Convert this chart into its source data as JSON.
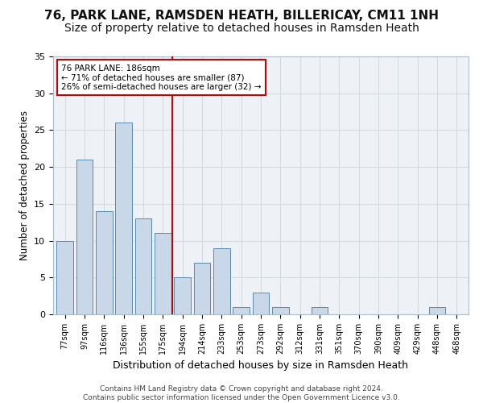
{
  "title1": "76, PARK LANE, RAMSDEN HEATH, BILLERICAY, CM11 1NH",
  "title2": "Size of property relative to detached houses in Ramsden Heath",
  "xlabel": "Distribution of detached houses by size in Ramsden Heath",
  "ylabel": "Number of detached properties",
  "categories": [
    "77sqm",
    "97sqm",
    "116sqm",
    "136sqm",
    "155sqm",
    "175sqm",
    "194sqm",
    "214sqm",
    "233sqm",
    "253sqm",
    "273sqm",
    "292sqm",
    "312sqm",
    "331sqm",
    "351sqm",
    "370sqm",
    "390sqm",
    "409sqm",
    "429sqm",
    "448sqm",
    "468sqm"
  ],
  "values": [
    10,
    21,
    14,
    26,
    13,
    11,
    5,
    7,
    9,
    1,
    3,
    1,
    0,
    1,
    0,
    0,
    0,
    0,
    0,
    1,
    0
  ],
  "bar_color": "#c8d8e8",
  "bar_edge_color": "#5a8ab0",
  "grid_color": "#d0d8e0",
  "vline_x": 5.5,
  "vline_color": "#cc0000",
  "annotation_text": "76 PARK LANE: 186sqm\n← 71% of detached houses are smaller (87)\n26% of semi-detached houses are larger (32) →",
  "annotation_box_color": "#ffffff",
  "annotation_box_edge": "#cc0000",
  "footnote": "Contains HM Land Registry data © Crown copyright and database right 2024.\nContains public sector information licensed under the Open Government Licence v3.0.",
  "ylim": [
    0,
    35
  ],
  "yticks": [
    0,
    5,
    10,
    15,
    20,
    25,
    30,
    35
  ],
  "background_color": "#eef2f7",
  "title_fontsize": 11,
  "subtitle_fontsize": 10
}
